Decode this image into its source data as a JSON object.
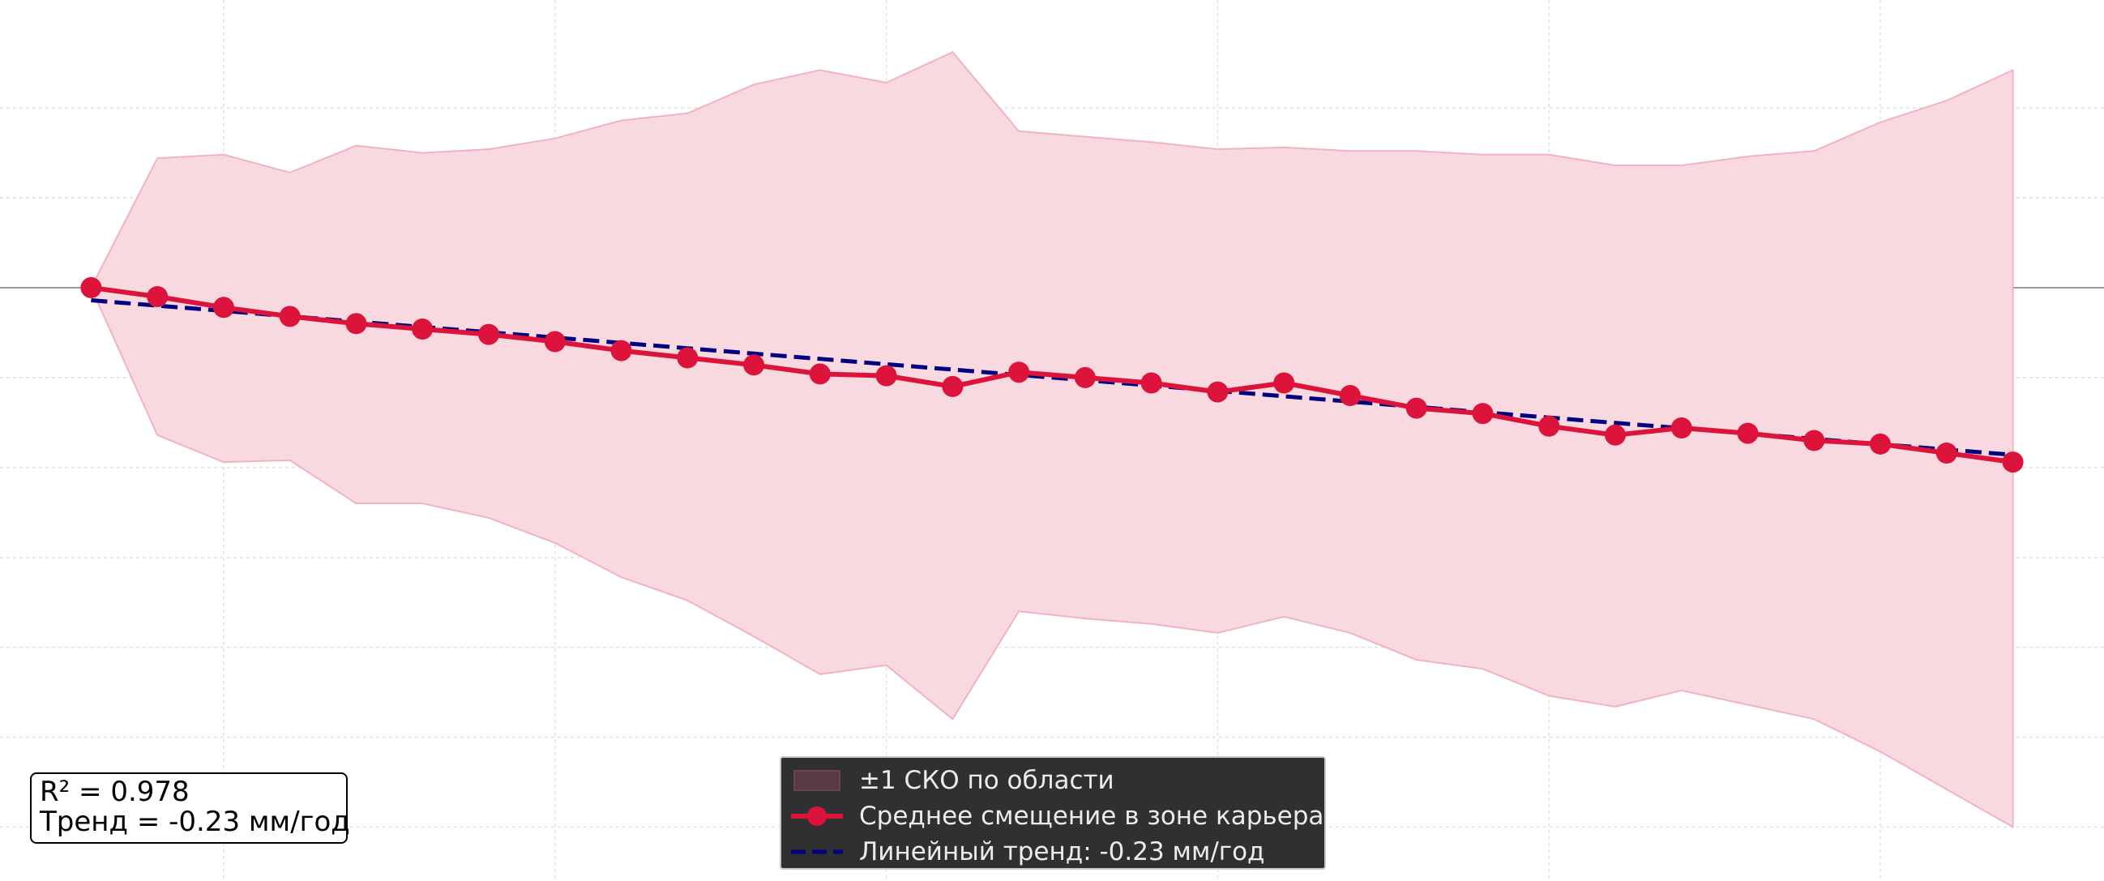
{
  "chart_data": {
    "type": "line",
    "title": "",
    "xlabel": "",
    "ylabel": "",
    "x": [
      0,
      1,
      2,
      3,
      4,
      5,
      6,
      7,
      8,
      9,
      10,
      11,
      12,
      13,
      14,
      15,
      16,
      17,
      18,
      19,
      20,
      21,
      22,
      23,
      24,
      25,
      26,
      27,
      28,
      29
    ],
    "xlim": [
      -1.375,
      30.375
    ],
    "ylim": [
      -3.3,
      1.6
    ],
    "grid": true,
    "legend_position": "bottom-center",
    "series": [
      {
        "name": "Среднее смещение в зоне карьера",
        "kind": "line-markers",
        "color": "#dc143c",
        "values": [
          0.0,
          -0.05,
          -0.11,
          -0.16,
          -0.2,
          -0.23,
          -0.26,
          -0.3,
          -0.35,
          -0.39,
          -0.43,
          -0.48,
          -0.49,
          -0.55,
          -0.47,
          -0.5,
          -0.53,
          -0.58,
          -0.53,
          -0.6,
          -0.67,
          -0.7,
          -0.77,
          -0.82,
          -0.78,
          -0.81,
          -0.85,
          -0.87,
          -0.92,
          -0.97
        ]
      },
      {
        "name": "Линейный тренд: -0.23 мм/год",
        "kind": "dashed-line",
        "color": "#000080",
        "values": [
          -0.07,
          -0.0997,
          -0.1293,
          -0.159,
          -0.1886,
          -0.2183,
          -0.2479,
          -0.2776,
          -0.3072,
          -0.3369,
          -0.3666,
          -0.3962,
          -0.4259,
          -0.4555,
          -0.4852,
          -0.5148,
          -0.5445,
          -0.5741,
          -0.6038,
          -0.6334,
          -0.6631,
          -0.6928,
          -0.7224,
          -0.7521,
          -0.7817,
          -0.8114,
          -0.841,
          -0.8707,
          -0.9003,
          -0.93
        ]
      },
      {
        "name": "±1 СКО по области",
        "kind": "band",
        "color": "#dc143c",
        "upper": [
          0.0,
          0.72,
          0.74,
          0.64,
          0.79,
          0.75,
          0.77,
          0.83,
          0.93,
          0.97,
          1.13,
          1.21,
          1.14,
          1.31,
          0.87,
          0.84,
          0.81,
          0.77,
          0.78,
          0.76,
          0.76,
          0.74,
          0.74,
          0.68,
          0.68,
          0.73,
          0.76,
          0.92,
          1.04,
          1.21
        ],
        "lower": [
          0.0,
          -0.82,
          -0.97,
          -0.96,
          -1.2,
          -1.2,
          -1.28,
          -1.42,
          -1.61,
          -1.74,
          -1.94,
          -2.15,
          -2.1,
          -2.4,
          -1.8,
          -1.84,
          -1.87,
          -1.92,
          -1.83,
          -1.92,
          -2.07,
          -2.12,
          -2.27,
          -2.33,
          -2.24,
          -2.32,
          -2.4,
          -2.58,
          -2.79,
          -3.0
        ]
      }
    ],
    "reference_line": {
      "y": 0,
      "color": "#999999"
    }
  },
  "stats_box": {
    "r2_text": "R² = 0.978",
    "trend_text": "Тренд = -0.23 мм/год"
  },
  "legend": {
    "items": [
      {
        "label": "±1 СКО по области",
        "symbol": "band"
      },
      {
        "label": "Среднее смещение в зоне карьера",
        "symbol": "line-markers"
      },
      {
        "label": "Линейный тренд: -0.23 мм/год",
        "symbol": "dashed-line"
      }
    ]
  },
  "colors": {
    "mean_line": "#dc143c",
    "band_fill": "#f8d9df",
    "band_edge": "#f2b3c0",
    "trend_line": "#000080",
    "grid": "#e2e2e2",
    "legend_bg": "#303030"
  }
}
